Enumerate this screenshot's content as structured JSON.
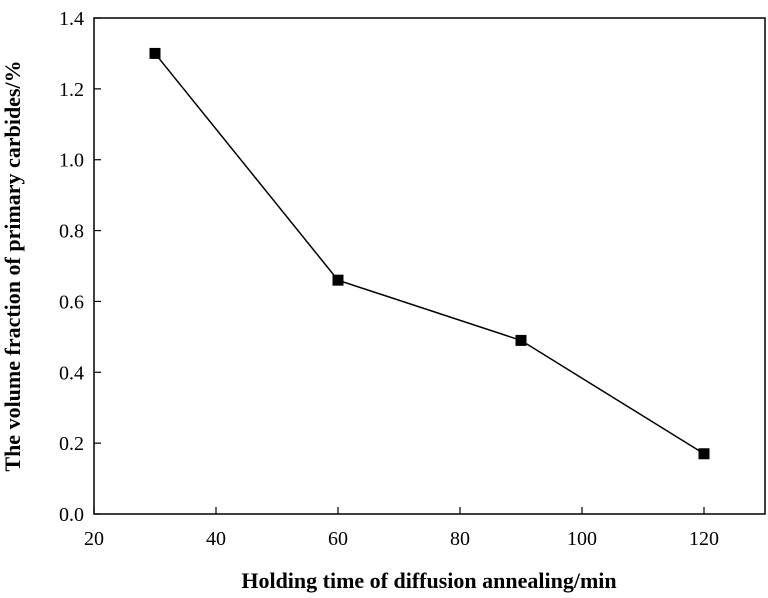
{
  "chart_data": {
    "type": "line",
    "title": "",
    "xlabel": "Holding time of diffusion annealing/min",
    "ylabel": "The volume fraction of primary carbides/%",
    "xlim": [
      20,
      130
    ],
    "ylim": [
      0.0,
      1.4
    ],
    "xticks": [
      20,
      40,
      60,
      80,
      100,
      120
    ],
    "yticks": [
      0.0,
      0.2,
      0.4,
      0.6,
      0.8,
      1.0,
      1.2,
      1.4
    ],
    "xtick_labels": [
      "20",
      "40",
      "60",
      "80",
      "100",
      "120"
    ],
    "ytick_labels": [
      "0.0",
      "0.2",
      "0.4",
      "0.6",
      "0.8",
      "1.0",
      "1.2",
      "1.4"
    ],
    "grid": false,
    "legend": "none",
    "series": [
      {
        "marker": "square",
        "color": "#000000",
        "x": [
          30,
          60,
          90,
          120
        ],
        "y": [
          1.3,
          0.66,
          0.49,
          0.17
        ]
      }
    ]
  }
}
